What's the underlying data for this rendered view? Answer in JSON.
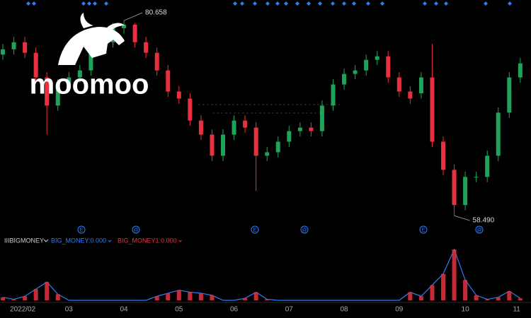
{
  "chart_data": [
    {
      "type": "candlestick",
      "categories": [
        null,
        null,
        "2022/02",
        null,
        null,
        null,
        "03",
        null,
        null,
        null,
        null,
        "04",
        null,
        null,
        null,
        null,
        "05",
        null,
        null,
        null,
        null,
        "06",
        null,
        null,
        null,
        null,
        "07",
        null,
        null,
        null,
        null,
        "08",
        null,
        null,
        null,
        null,
        "09",
        null,
        null,
        null,
        null,
        null,
        "10",
        null,
        null,
        null,
        null,
        "11"
      ],
      "open": [
        76.8,
        77.4,
        78.2,
        77,
        74.2,
        71,
        73.4,
        74.2,
        75,
        77.4,
        78.2,
        79.8,
        80.2,
        78.2,
        77,
        75,
        72.6,
        71.8,
        69.3,
        67.7,
        65.3,
        67.7,
        69.3,
        68.5,
        65.3,
        65.7,
        66.9,
        68.1,
        68.5,
        68.1,
        71,
        73.4,
        74.6,
        75,
        76.2,
        76.6,
        74.2,
        72.6,
        72.4,
        74.2,
        66.9,
        63.7,
        59.7,
        62.9,
        62.9,
        65.3,
        70.2,
        74.2
      ],
      "high": [
        78.0,
        78.8,
        78.8,
        77.6,
        74.8,
        74.0,
        74.8,
        75.6,
        78.0,
        78.8,
        80.4,
        80.658,
        80.4,
        78.8,
        77.6,
        75.6,
        73.2,
        72.4,
        69.9,
        68.3,
        68.3,
        69.9,
        69.9,
        69.1,
        66.3,
        67.5,
        68.7,
        69.1,
        69.1,
        71.6,
        74.0,
        75.2,
        75.6,
        76.8,
        77.2,
        77.2,
        74.8,
        73.2,
        74.8,
        78.0,
        67.5,
        64.3,
        63.5,
        63.5,
        65.9,
        70.8,
        74.8,
        76.4
      ],
      "low": [
        76.2,
        76.8,
        76.4,
        73.6,
        67.7,
        70.4,
        72.8,
        73.6,
        74.4,
        76.8,
        77.6,
        79.2,
        77.6,
        76.4,
        74.4,
        72.0,
        71.2,
        68.7,
        67.1,
        64.7,
        64.7,
        67.1,
        67.9,
        61.3,
        64.7,
        65.1,
        66.3,
        67.5,
        67.5,
        67.5,
        70.4,
        72.8,
        74.0,
        74.4,
        75.6,
        73.6,
        72.0,
        71.2,
        71.8,
        66.3,
        63.1,
        58.49,
        59.1,
        62.3,
        62.3,
        64.7,
        69.6,
        73.6
      ],
      "close": [
        77.4,
        78.2,
        77,
        74.2,
        71,
        73.4,
        74.2,
        75,
        77.4,
        78.2,
        79.8,
        80.2,
        78.2,
        77,
        75,
        72.6,
        71.8,
        69.3,
        67.7,
        65.3,
        67.7,
        69.3,
        68.5,
        65.3,
        65.7,
        66.9,
        68.1,
        68.5,
        68.1,
        71,
        73.4,
        74.6,
        75,
        76.2,
        76.6,
        74.2,
        72.6,
        71.8,
        74.2,
        66.9,
        63.7,
        59.7,
        62.9,
        62.9,
        65.3,
        70.2,
        74.2,
        75.8
      ],
      "up_color": "#1fa35b",
      "down_color": "#e8313f",
      "ylim": [
        56.5,
        83
      ],
      "annotations": [
        "80.658",
        "58.490"
      ],
      "events": [
        "E",
        "@",
        "E",
        "@",
        "E",
        "@"
      ],
      "watermark": "moomoo"
    },
    {
      "type": "bar",
      "title": "IIIBIGMONEY",
      "ylim": [
        0,
        100
      ],
      "series": [
        {
          "name": "BIG_MONEY:0.000",
          "color": "#2f7df6",
          "style": "line",
          "values": [
            6,
            2,
            8,
            22,
            36,
            12,
            0,
            0,
            0,
            0,
            0,
            0,
            0,
            0,
            8,
            14,
            20,
            16,
            14,
            10,
            0,
            0,
            4,
            16,
            2,
            0,
            0,
            0,
            0,
            0,
            0,
            0,
            0,
            0,
            0,
            0,
            0,
            16,
            8,
            30,
            52,
            100,
            40,
            10,
            2,
            6,
            18,
            4
          ]
        },
        {
          "name": "BIG_MONEY1:0.000",
          "color": "#e8313f",
          "style": "bar",
          "values": [
            6,
            2,
            8,
            22,
            36,
            12,
            0,
            0,
            0,
            0,
            0,
            0,
            0,
            0,
            8,
            14,
            20,
            16,
            14,
            10,
            0,
            0,
            4,
            16,
            2,
            0,
            0,
            0,
            0,
            0,
            0,
            0,
            0,
            0,
            0,
            0,
            0,
            16,
            8,
            30,
            52,
            100,
            40,
            10,
            2,
            6,
            18,
            4
          ]
        }
      ]
    }
  ]
}
